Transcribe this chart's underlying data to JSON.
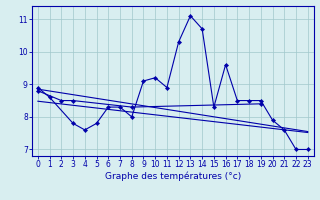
{
  "title": "Graphe des températures (°c)",
  "background_color": "#d8eef0",
  "grid_color": "#a0c8cc",
  "line_color": "#0000aa",
  "x_hours": [
    0,
    1,
    2,
    3,
    4,
    5,
    6,
    7,
    8,
    9,
    10,
    11,
    12,
    13,
    14,
    15,
    16,
    17,
    18,
    19,
    20,
    21,
    22,
    23
  ],
  "series1_x": [
    0,
    1,
    3,
    4,
    5,
    6,
    7,
    8,
    9,
    10,
    11,
    12,
    13,
    14,
    15,
    16,
    17,
    18,
    19,
    20,
    21,
    22,
    23
  ],
  "series1_y": [
    8.9,
    8.6,
    7.8,
    7.6,
    7.8,
    8.3,
    8.3,
    8.0,
    9.1,
    9.2,
    8.9,
    10.3,
    11.1,
    10.7,
    8.3,
    9.6,
    8.5,
    8.5,
    8.5,
    7.9,
    7.6,
    7.0,
    7.0
  ],
  "series2_x": [
    0,
    2,
    3,
    8,
    19
  ],
  "series2_y": [
    8.8,
    8.5,
    8.5,
    8.3,
    8.4
  ],
  "trend1_x": [
    0,
    23
  ],
  "trend1_y": [
    8.85,
    7.55
  ],
  "trend2_x": [
    0,
    23
  ],
  "trend2_y": [
    8.48,
    7.52
  ],
  "ylim": [
    6.8,
    11.4
  ],
  "xlim": [
    -0.5,
    23.5
  ],
  "yticks": [
    7,
    8,
    9,
    10,
    11
  ],
  "xticks": [
    0,
    1,
    2,
    3,
    4,
    5,
    6,
    7,
    8,
    9,
    10,
    11,
    12,
    13,
    14,
    15,
    16,
    17,
    18,
    19,
    20,
    21,
    22,
    23
  ],
  "tick_fontsize": 5.5,
  "xlabel_fontsize": 6.5
}
